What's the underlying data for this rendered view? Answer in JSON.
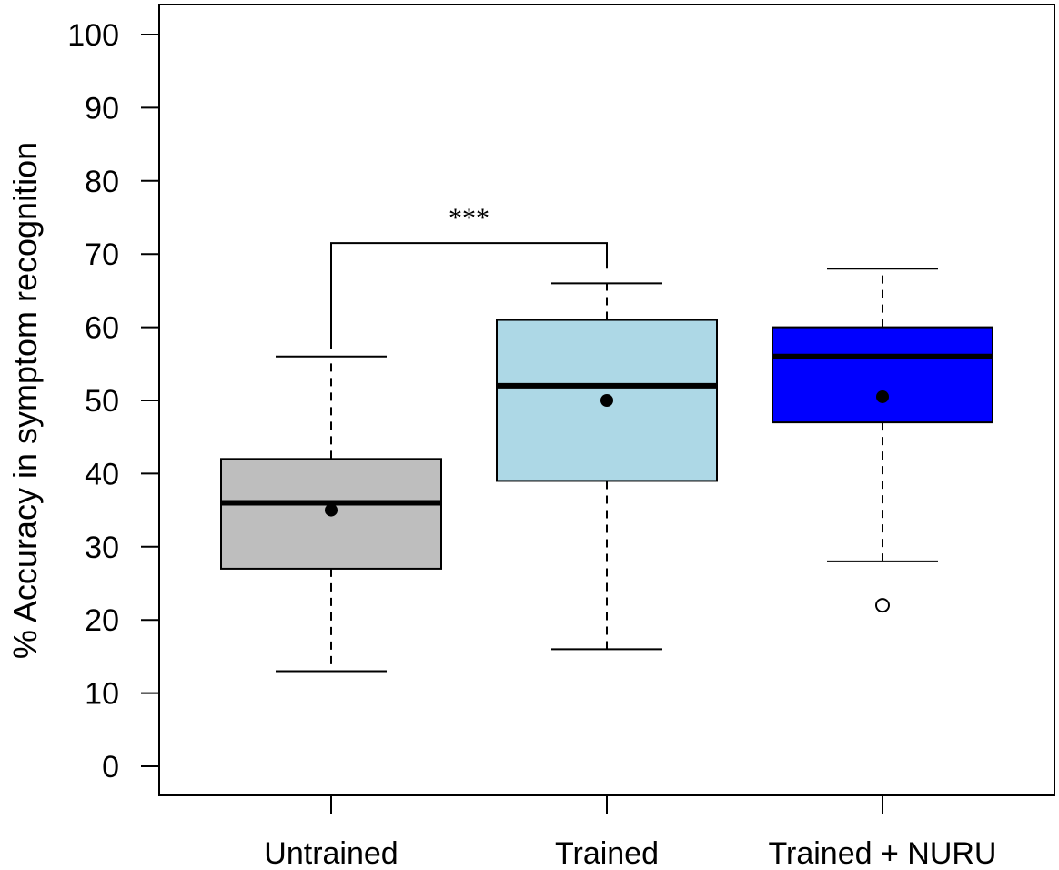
{
  "chart_data": {
    "type": "boxplot",
    "title": "",
    "xlabel": "",
    "ylabel": "% Accuracy in symptom recognition",
    "ylim": [
      -4,
      104
    ],
    "yticks": [
      0,
      10,
      20,
      30,
      40,
      50,
      60,
      70,
      80,
      90,
      100
    ],
    "ytick_labels": [
      "0",
      "10",
      "20",
      "30",
      "40",
      "50",
      "60",
      "70",
      "80",
      "90",
      "100"
    ],
    "grid": false,
    "legend": "none",
    "categories": [
      "Untrained",
      "Trained",
      "Trained + NURU"
    ],
    "boxes": [
      {
        "label": "Untrained",
        "whisker_low": 13,
        "q1": 27,
        "median": 36,
        "q3": 42,
        "whisker_high": 56,
        "mean": 35,
        "outliers": [],
        "fill": "#bebebe"
      },
      {
        "label": "Trained",
        "whisker_low": 16,
        "q1": 39,
        "median": 52,
        "q3": 61,
        "whisker_high": 66,
        "mean": 50,
        "outliers": [],
        "fill": "#add8e6"
      },
      {
        "label": "Trained + NURU",
        "whisker_low": 28,
        "q1": 47,
        "median": 56,
        "q3": 60,
        "whisker_high": 68,
        "mean": 50.5,
        "outliers": [
          22
        ],
        "fill": "#0000ff"
      }
    ],
    "annotations": [
      {
        "text": "***",
        "from": "Untrained",
        "to": "Trained",
        "from_value": 57,
        "to_value": 68,
        "bracket_value": 71.5
      }
    ]
  }
}
